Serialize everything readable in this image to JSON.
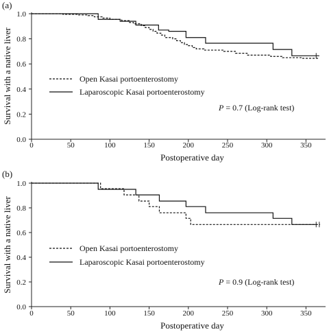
{
  "chart_data": [
    {
      "type": "line",
      "panel_label": "(a)",
      "xlabel": "Postoperative day",
      "ylabel": "Survival with a native liver",
      "xlim": [
        0,
        375
      ],
      "ylim": [
        0,
        1.0
      ],
      "x_ticks": [
        0,
        50,
        100,
        150,
        200,
        250,
        300,
        350
      ],
      "y_ticks": [
        0.0,
        0.2,
        0.4,
        0.6,
        0.8,
        1.0
      ],
      "legend_position": "middle-left",
      "series": [
        {
          "name": "Open Kasai portoenterostomy",
          "style": "dashed",
          "points": [
            [
              0,
              1.0
            ],
            [
              40,
              1.0
            ],
            [
              40,
              0.995
            ],
            [
              60,
              0.995
            ],
            [
              60,
              0.99
            ],
            [
              72,
              0.99
            ],
            [
              72,
              0.985
            ],
            [
              80,
              0.985
            ],
            [
              80,
              0.975
            ],
            [
              90,
              0.975
            ],
            [
              90,
              0.965
            ],
            [
              100,
              0.965
            ],
            [
              100,
              0.955
            ],
            [
              115,
              0.955
            ],
            [
              115,
              0.945
            ],
            [
              125,
              0.945
            ],
            [
              125,
              0.93
            ],
            [
              130,
              0.93
            ],
            [
              130,
              0.92
            ],
            [
              140,
              0.92
            ],
            [
              140,
              0.905
            ],
            [
              145,
              0.905
            ],
            [
              145,
              0.89
            ],
            [
              150,
              0.89
            ],
            [
              150,
              0.875
            ],
            [
              155,
              0.875
            ],
            [
              155,
              0.86
            ],
            [
              160,
              0.86
            ],
            [
              160,
              0.845
            ],
            [
              165,
              0.845
            ],
            [
              165,
              0.83
            ],
            [
              170,
              0.83
            ],
            [
              170,
              0.81
            ],
            [
              180,
              0.81
            ],
            [
              180,
              0.8
            ],
            [
              185,
              0.8
            ],
            [
              185,
              0.785
            ],
            [
              190,
              0.785
            ],
            [
              190,
              0.77
            ],
            [
              195,
              0.77
            ],
            [
              195,
              0.755
            ],
            [
              200,
              0.755
            ],
            [
              200,
              0.745
            ],
            [
              205,
              0.745
            ],
            [
              205,
              0.73
            ],
            [
              210,
              0.73
            ],
            [
              210,
              0.72
            ],
            [
              220,
              0.72
            ],
            [
              220,
              0.71
            ],
            [
              245,
              0.71
            ],
            [
              245,
              0.7
            ],
            [
              260,
              0.7
            ],
            [
              260,
              0.685
            ],
            [
              275,
              0.685
            ],
            [
              275,
              0.67
            ],
            [
              305,
              0.67
            ],
            [
              305,
              0.66
            ],
            [
              320,
              0.66
            ],
            [
              320,
              0.65
            ],
            [
              345,
              0.65
            ],
            [
              345,
              0.645
            ],
            [
              367,
              0.645
            ]
          ],
          "censored": []
        },
        {
          "name": "Laparoscopic Kasai portoenterostomy",
          "style": "solid",
          "points": [
            [
              0,
              1.0
            ],
            [
              85,
              1.0
            ],
            [
              85,
              0.955
            ],
            [
              113,
              0.955
            ],
            [
              113,
              0.94
            ],
            [
              133,
              0.94
            ],
            [
              133,
              0.91
            ],
            [
              162,
              0.91
            ],
            [
              162,
              0.87
            ],
            [
              175,
              0.87
            ],
            [
              175,
              0.86
            ],
            [
              197,
              0.86
            ],
            [
              197,
              0.81
            ],
            [
              222,
              0.81
            ],
            [
              222,
              0.765
            ],
            [
              308,
              0.765
            ],
            [
              308,
              0.715
            ],
            [
              332,
              0.715
            ],
            [
              332,
              0.665
            ],
            [
              367,
              0.665
            ]
          ],
          "censored": [
            [
              363,
              0.665
            ]
          ]
        }
      ],
      "annotation": {
        "p_italic": "P",
        "text": " = 0.7 (Log-rank test)"
      }
    },
    {
      "type": "line",
      "panel_label": "(b)",
      "xlabel": "Postoperative day",
      "ylabel": "Survival with a native liver",
      "xlim": [
        0,
        375
      ],
      "ylim": [
        0,
        1.0
      ],
      "x_ticks": [
        0,
        50,
        100,
        150,
        200,
        250,
        300,
        350
      ],
      "y_ticks": [
        0.0,
        0.2,
        0.4,
        0.6,
        0.8,
        1.0
      ],
      "legend_position": "middle-left",
      "series": [
        {
          "name": "Open Kasai portoenterostomy",
          "style": "dashed",
          "points": [
            [
              0,
              1.0
            ],
            [
              88,
              1.0
            ],
            [
              88,
              0.955
            ],
            [
              118,
              0.955
            ],
            [
              118,
              0.905
            ],
            [
              137,
              0.905
            ],
            [
              137,
              0.855
            ],
            [
              150,
              0.855
            ],
            [
              150,
              0.81
            ],
            [
              163,
              0.81
            ],
            [
              163,
              0.76
            ],
            [
              197,
              0.76
            ],
            [
              197,
              0.715
            ],
            [
              203,
              0.715
            ],
            [
              203,
              0.665
            ],
            [
              368,
              0.665
            ]
          ],
          "censored": [
            [
              367,
              0.665
            ]
          ]
        },
        {
          "name": "Laparoscopic Kasai portoenterostomy",
          "style": "solid",
          "points": [
            [
              0,
              1.0
            ],
            [
              85,
              1.0
            ],
            [
              85,
              0.95
            ],
            [
              133,
              0.95
            ],
            [
              133,
              0.905
            ],
            [
              163,
              0.905
            ],
            [
              163,
              0.855
            ],
            [
              197,
              0.855
            ],
            [
              197,
              0.81
            ],
            [
              222,
              0.81
            ],
            [
              222,
              0.76
            ],
            [
              308,
              0.76
            ],
            [
              308,
              0.715
            ],
            [
              332,
              0.715
            ],
            [
              332,
              0.665
            ],
            [
              365,
              0.665
            ]
          ],
          "censored": [
            [
              363,
              0.665
            ]
          ]
        }
      ],
      "annotation": {
        "p_italic": "P",
        "text": " = 0.9 (Log-rank test)"
      }
    }
  ]
}
